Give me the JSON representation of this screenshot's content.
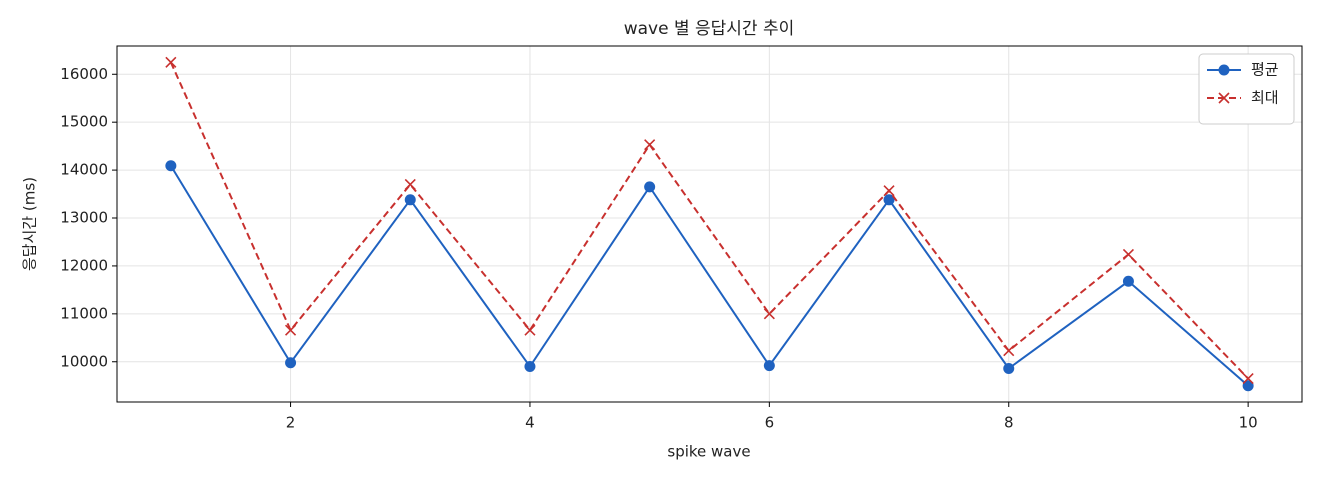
{
  "chart_data": {
    "type": "line",
    "title": "wave 별 응답시간 추이",
    "x_label": "spike wave",
    "y_label": "응답시간 (ms)",
    "x": [
      1,
      2,
      3,
      4,
      5,
      6,
      7,
      8,
      9,
      10
    ],
    "series": [
      {
        "name": "평균",
        "color": "#1f62c0",
        "marker": "o",
        "dash": "solid",
        "values": [
          14090,
          9980,
          13380,
          9900,
          13650,
          9920,
          13380,
          9860,
          11680,
          9500
        ]
      },
      {
        "name": "최대",
        "color": "#c8302e",
        "marker": "x",
        "dash": "dashed",
        "values": [
          16250,
          10660,
          13700,
          10660,
          14530,
          11000,
          13570,
          10230,
          12240,
          9650
        ]
      }
    ],
    "xlim": [
      0.55,
      10.45
    ],
    "xticks": [
      2,
      4,
      6,
      8,
      10
    ],
    "ylim": [
      9160,
      16590
    ],
    "yticks": [
      10000,
      11000,
      12000,
      13000,
      14000,
      15000,
      16000
    ],
    "grid": true,
    "legend": "upper right"
  }
}
